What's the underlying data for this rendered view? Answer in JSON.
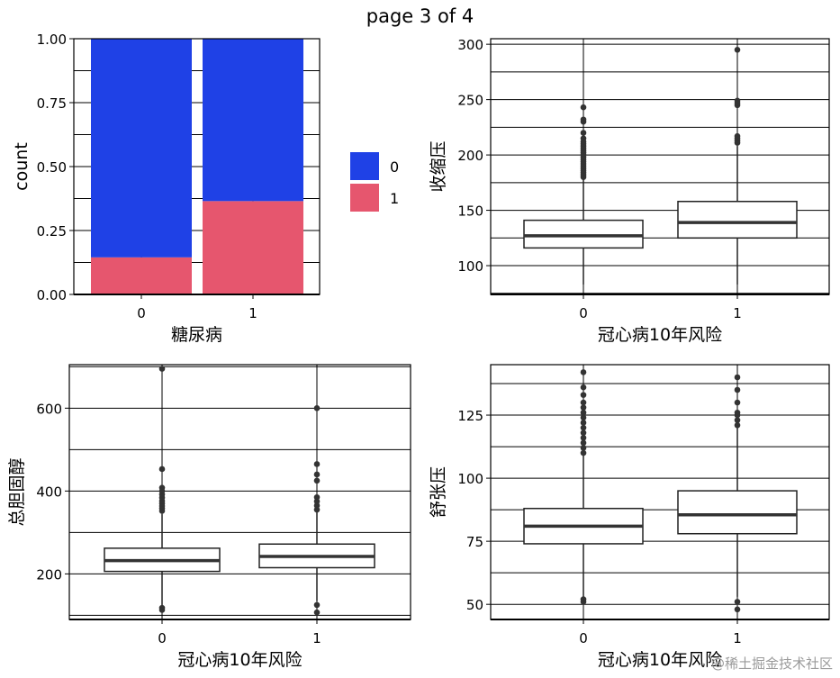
{
  "page_title": "page 3 of 4",
  "watermark": "@稀土掘金技术社区",
  "colors": {
    "fill_0": "#1f41e6",
    "fill_1": "#e6566e",
    "line": "#222222",
    "median": "#333333"
  },
  "chart_data": [
    {
      "type": "bar",
      "subtype": "stacked-proportion",
      "xlabel": "糖尿病",
      "ylabel": "count",
      "categories": [
        "0",
        "1"
      ],
      "ylim": [
        0,
        1
      ],
      "yticks": [
        "0.00",
        "0.25",
        "0.50",
        "0.75",
        "1.00"
      ],
      "series": [
        {
          "name": "0",
          "values": [
            0.855,
            0.635
          ]
        },
        {
          "name": "1",
          "values": [
            0.145,
            0.365
          ]
        }
      ],
      "legend": {
        "placement": "right",
        "entries": [
          "0",
          "1"
        ]
      },
      "grid": true
    },
    {
      "type": "box",
      "xlabel": "冠心病10年风险",
      "ylabel": "收缩压",
      "categories": [
        "0",
        "1"
      ],
      "ylim": [
        74,
        305
      ],
      "yticks": [
        "100",
        "150",
        "200",
        "250",
        "300"
      ],
      "boxes": [
        {
          "q1": 116,
          "median": 127,
          "q3": 141,
          "whisker_low": 83,
          "whisker_high": 178,
          "outliers": [
            180,
            182,
            184,
            186,
            188,
            190,
            192,
            194,
            196,
            198,
            200,
            202,
            204,
            206,
            208,
            210,
            212,
            215,
            220,
            230,
            232,
            243
          ]
        },
        {
          "q1": 125,
          "median": 139,
          "q3": 158,
          "whisker_low": 83,
          "whisker_high": 208,
          "outliers": [
            211,
            213,
            215,
            217,
            245,
            247,
            249,
            295
          ]
        }
      ],
      "grid": true
    },
    {
      "type": "box",
      "xlabel": "冠心病10年风险",
      "ylabel": "总胆固醇",
      "categories": [
        "0",
        "1"
      ],
      "ylim": [
        90,
        705
      ],
      "yticks": [
        "200",
        "400",
        "600"
      ],
      "boxes": [
        {
          "q1": 206,
          "median": 232,
          "q3": 262,
          "whisker_low": 124,
          "whisker_high": 344,
          "outliers": [
            113,
            118,
            352,
            358,
            364,
            370,
            376,
            384,
            392,
            400,
            408,
            453,
            695
          ]
        },
        {
          "q1": 215,
          "median": 242,
          "q3": 272,
          "whisker_low": 135,
          "whisker_high": 352,
          "outliers": [
            107,
            125,
            355,
            365,
            375,
            385,
            425,
            440,
            465,
            600
          ]
        }
      ],
      "grid": true
    },
    {
      "type": "box",
      "xlabel": "冠心病10年风险",
      "ylabel": "舒张压",
      "categories": [
        "0",
        "1"
      ],
      "ylim": [
        44,
        145
      ],
      "yticks": [
        "50",
        "75",
        "100",
        "125"
      ],
      "boxes": [
        {
          "q1": 74,
          "median": 81,
          "q3": 88,
          "whisker_low": 53,
          "whisker_high": 109,
          "outliers": [
            51,
            52,
            110,
            112,
            114,
            116,
            118,
            120,
            122,
            124,
            126,
            128,
            130,
            133,
            136,
            142
          ]
        },
        {
          "q1": 78,
          "median": 85.5,
          "q3": 95,
          "whisker_low": 53,
          "whisker_high": 120,
          "outliers": [
            48,
            51,
            121,
            123,
            125,
            126,
            130,
            135,
            140
          ]
        }
      ],
      "grid": true
    }
  ]
}
